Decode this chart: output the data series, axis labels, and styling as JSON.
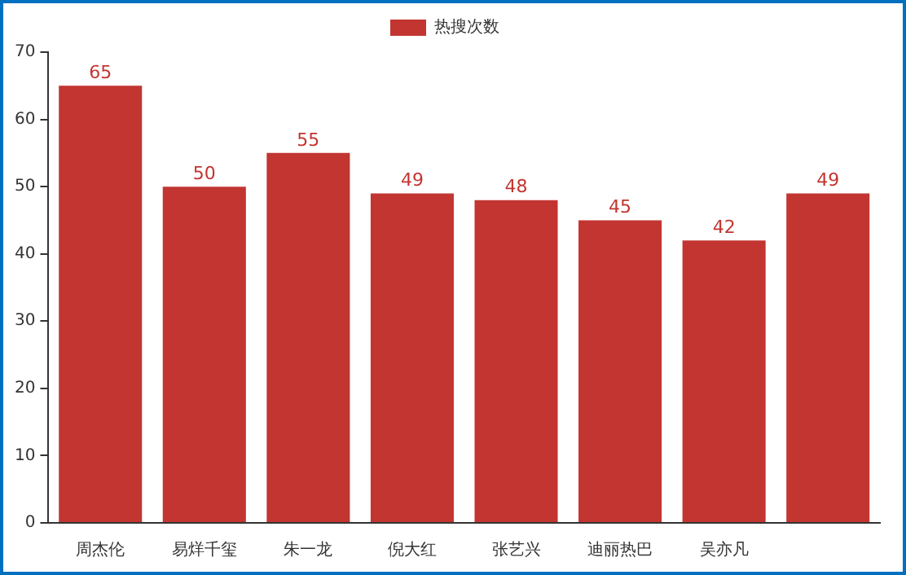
{
  "chart_data": {
    "type": "bar",
    "categories": [
      "周杰伦",
      "易烊千玺",
      "朱一龙",
      "倪大红",
      "张艺兴",
      "迪丽热巴",
      "吴亦凡",
      null
    ],
    "series": [
      {
        "name": "热搜次数",
        "color": "#c23531",
        "values": [
          65,
          50,
          55,
          49,
          48,
          45,
          42,
          49
        ]
      }
    ],
    "ylim": [
      0,
      70
    ],
    "yticks": [
      0,
      10,
      20,
      30,
      40,
      50,
      60,
      70
    ],
    "grid": false,
    "legend": "top",
    "data_labels": true
  }
}
